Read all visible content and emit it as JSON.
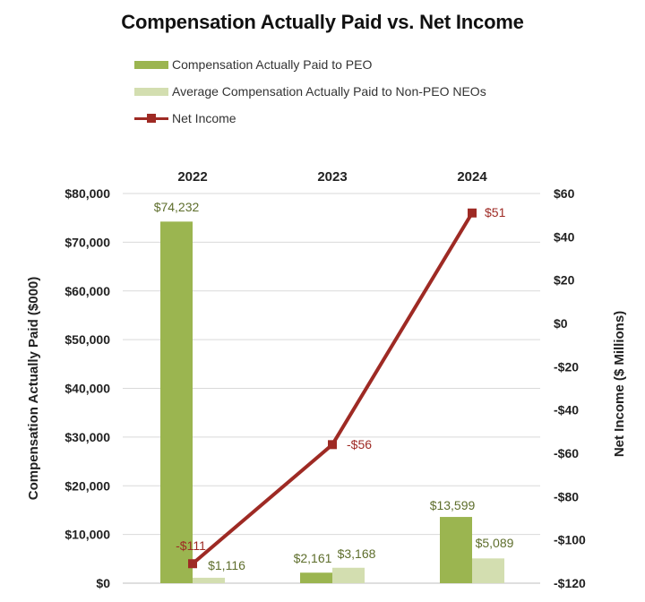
{
  "chart_data": {
    "type": "bar+line",
    "title": "Compensation Actually Paid vs. Net Income",
    "categories": [
      "2022",
      "2023",
      "2024"
    ],
    "series": [
      {
        "name": "Compensation Actually Paid to PEO",
        "kind": "bar",
        "axis": "left",
        "values": [
          74232,
          2161,
          13599
        ],
        "labels": [
          "$74,232",
          "$2,161",
          "$13,599"
        ],
        "color": "#9bb550"
      },
      {
        "name": "Average Compensation Actually Paid to Non-PEO NEOs",
        "kind": "bar",
        "axis": "left",
        "values": [
          1116,
          3168,
          5089
        ],
        "labels": [
          "$1,116",
          "$3,168",
          "$5,089"
        ],
        "color": "#d3deb0"
      },
      {
        "name": "Net Income",
        "kind": "line",
        "axis": "right",
        "values": [
          -111,
          -56,
          51
        ],
        "labels": [
          "-$111",
          "-$56",
          "$51"
        ],
        "color": "#9e2a24"
      }
    ],
    "left_axis": {
      "label": "Compensation Actually Paid ($000)",
      "range": [
        0,
        80000
      ],
      "ticks": [
        0,
        10000,
        20000,
        30000,
        40000,
        50000,
        60000,
        70000,
        80000
      ],
      "tick_labels": [
        "$0",
        "$10,000",
        "$20,000",
        "$30,000",
        "$40,000",
        "$50,000",
        "$60,000",
        "$70,000",
        "$80,000"
      ]
    },
    "right_axis": {
      "label": "Net Income ($ Millions)",
      "range": [
        -120,
        60
      ],
      "ticks": [
        60,
        40,
        20,
        0,
        -20,
        -40,
        -60,
        -80,
        -100,
        -120
      ],
      "tick_labels": [
        "$60",
        "$40",
        "$20",
        "$0",
        "-$20",
        "-$40",
        "-$60",
        "-$80",
        "-$100",
        "-$120"
      ]
    },
    "category_axis_position": "top",
    "grid": true,
    "legend": "top-left"
  },
  "colors": {
    "peo_bar": "#9bb550",
    "neo_bar": "#d3deb0",
    "net_income_line": "#9e2a24",
    "peo_label": "#5e6e2c",
    "grid": "#d9d9d9"
  }
}
